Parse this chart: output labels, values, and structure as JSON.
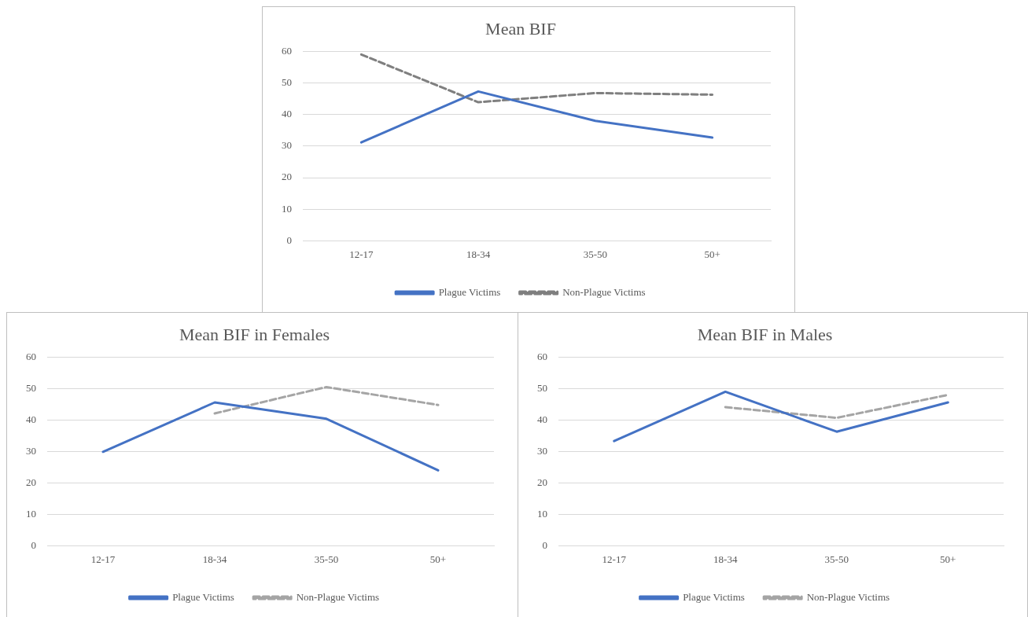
{
  "chart_data": [
    {
      "type": "line",
      "title": "Mean BIF",
      "categories": [
        "12-17",
        "18-34",
        "35-50",
        "50+"
      ],
      "ylim": [
        0,
        60
      ],
      "yticks": [
        0,
        10,
        20,
        30,
        40,
        50,
        60
      ],
      "grid": "y",
      "legend": "bottom",
      "marker": "none",
      "series": [
        {
          "name": "Plague Victims",
          "color": "#4472c4",
          "line_style": "solid",
          "values": [
            31.2,
            47.3,
            38,
            32.7
          ]
        },
        {
          "name": "Non-Plague Victims",
          "color": "#7f7f7f",
          "line_style": "dashed",
          "values": [
            59,
            43.9,
            46.8,
            46.3
          ]
        }
      ]
    },
    {
      "type": "line",
      "title": "Mean BIF in Females",
      "categories": [
        "12-17",
        "18-34",
        "35-50",
        "50+"
      ],
      "ylim": [
        0,
        60
      ],
      "yticks": [
        0,
        10,
        20,
        30,
        40,
        50,
        60
      ],
      "grid": "y",
      "legend": "bottom",
      "marker": "none",
      "series": [
        {
          "name": "Plague Victims",
          "color": "#4472c4",
          "line_style": "solid",
          "values": [
            29.9,
            45.6,
            40.4,
            24
          ]
        },
        {
          "name": "Non-Plague Victims",
          "color": "#a5a5a5",
          "line_style": "dashed",
          "values": [
            null,
            42.1,
            50.5,
            44.8
          ]
        }
      ]
    },
    {
      "type": "line",
      "title": "Mean BIF in Males",
      "categories": [
        "12-17",
        "18-34",
        "35-50",
        "50+"
      ],
      "ylim": [
        0,
        60
      ],
      "yticks": [
        0,
        10,
        20,
        30,
        40,
        50,
        60
      ],
      "grid": "y",
      "legend": "bottom",
      "marker": "none",
      "series": [
        {
          "name": "Plague Victims",
          "color": "#4472c4",
          "line_style": "solid",
          "values": [
            33.3,
            49,
            36.3,
            45.6
          ]
        },
        {
          "name": "Non-Plague Victims",
          "color": "#a5a5a5",
          "line_style": "dashed",
          "values": [
            null,
            44.1,
            40.7,
            48
          ]
        }
      ]
    }
  ]
}
